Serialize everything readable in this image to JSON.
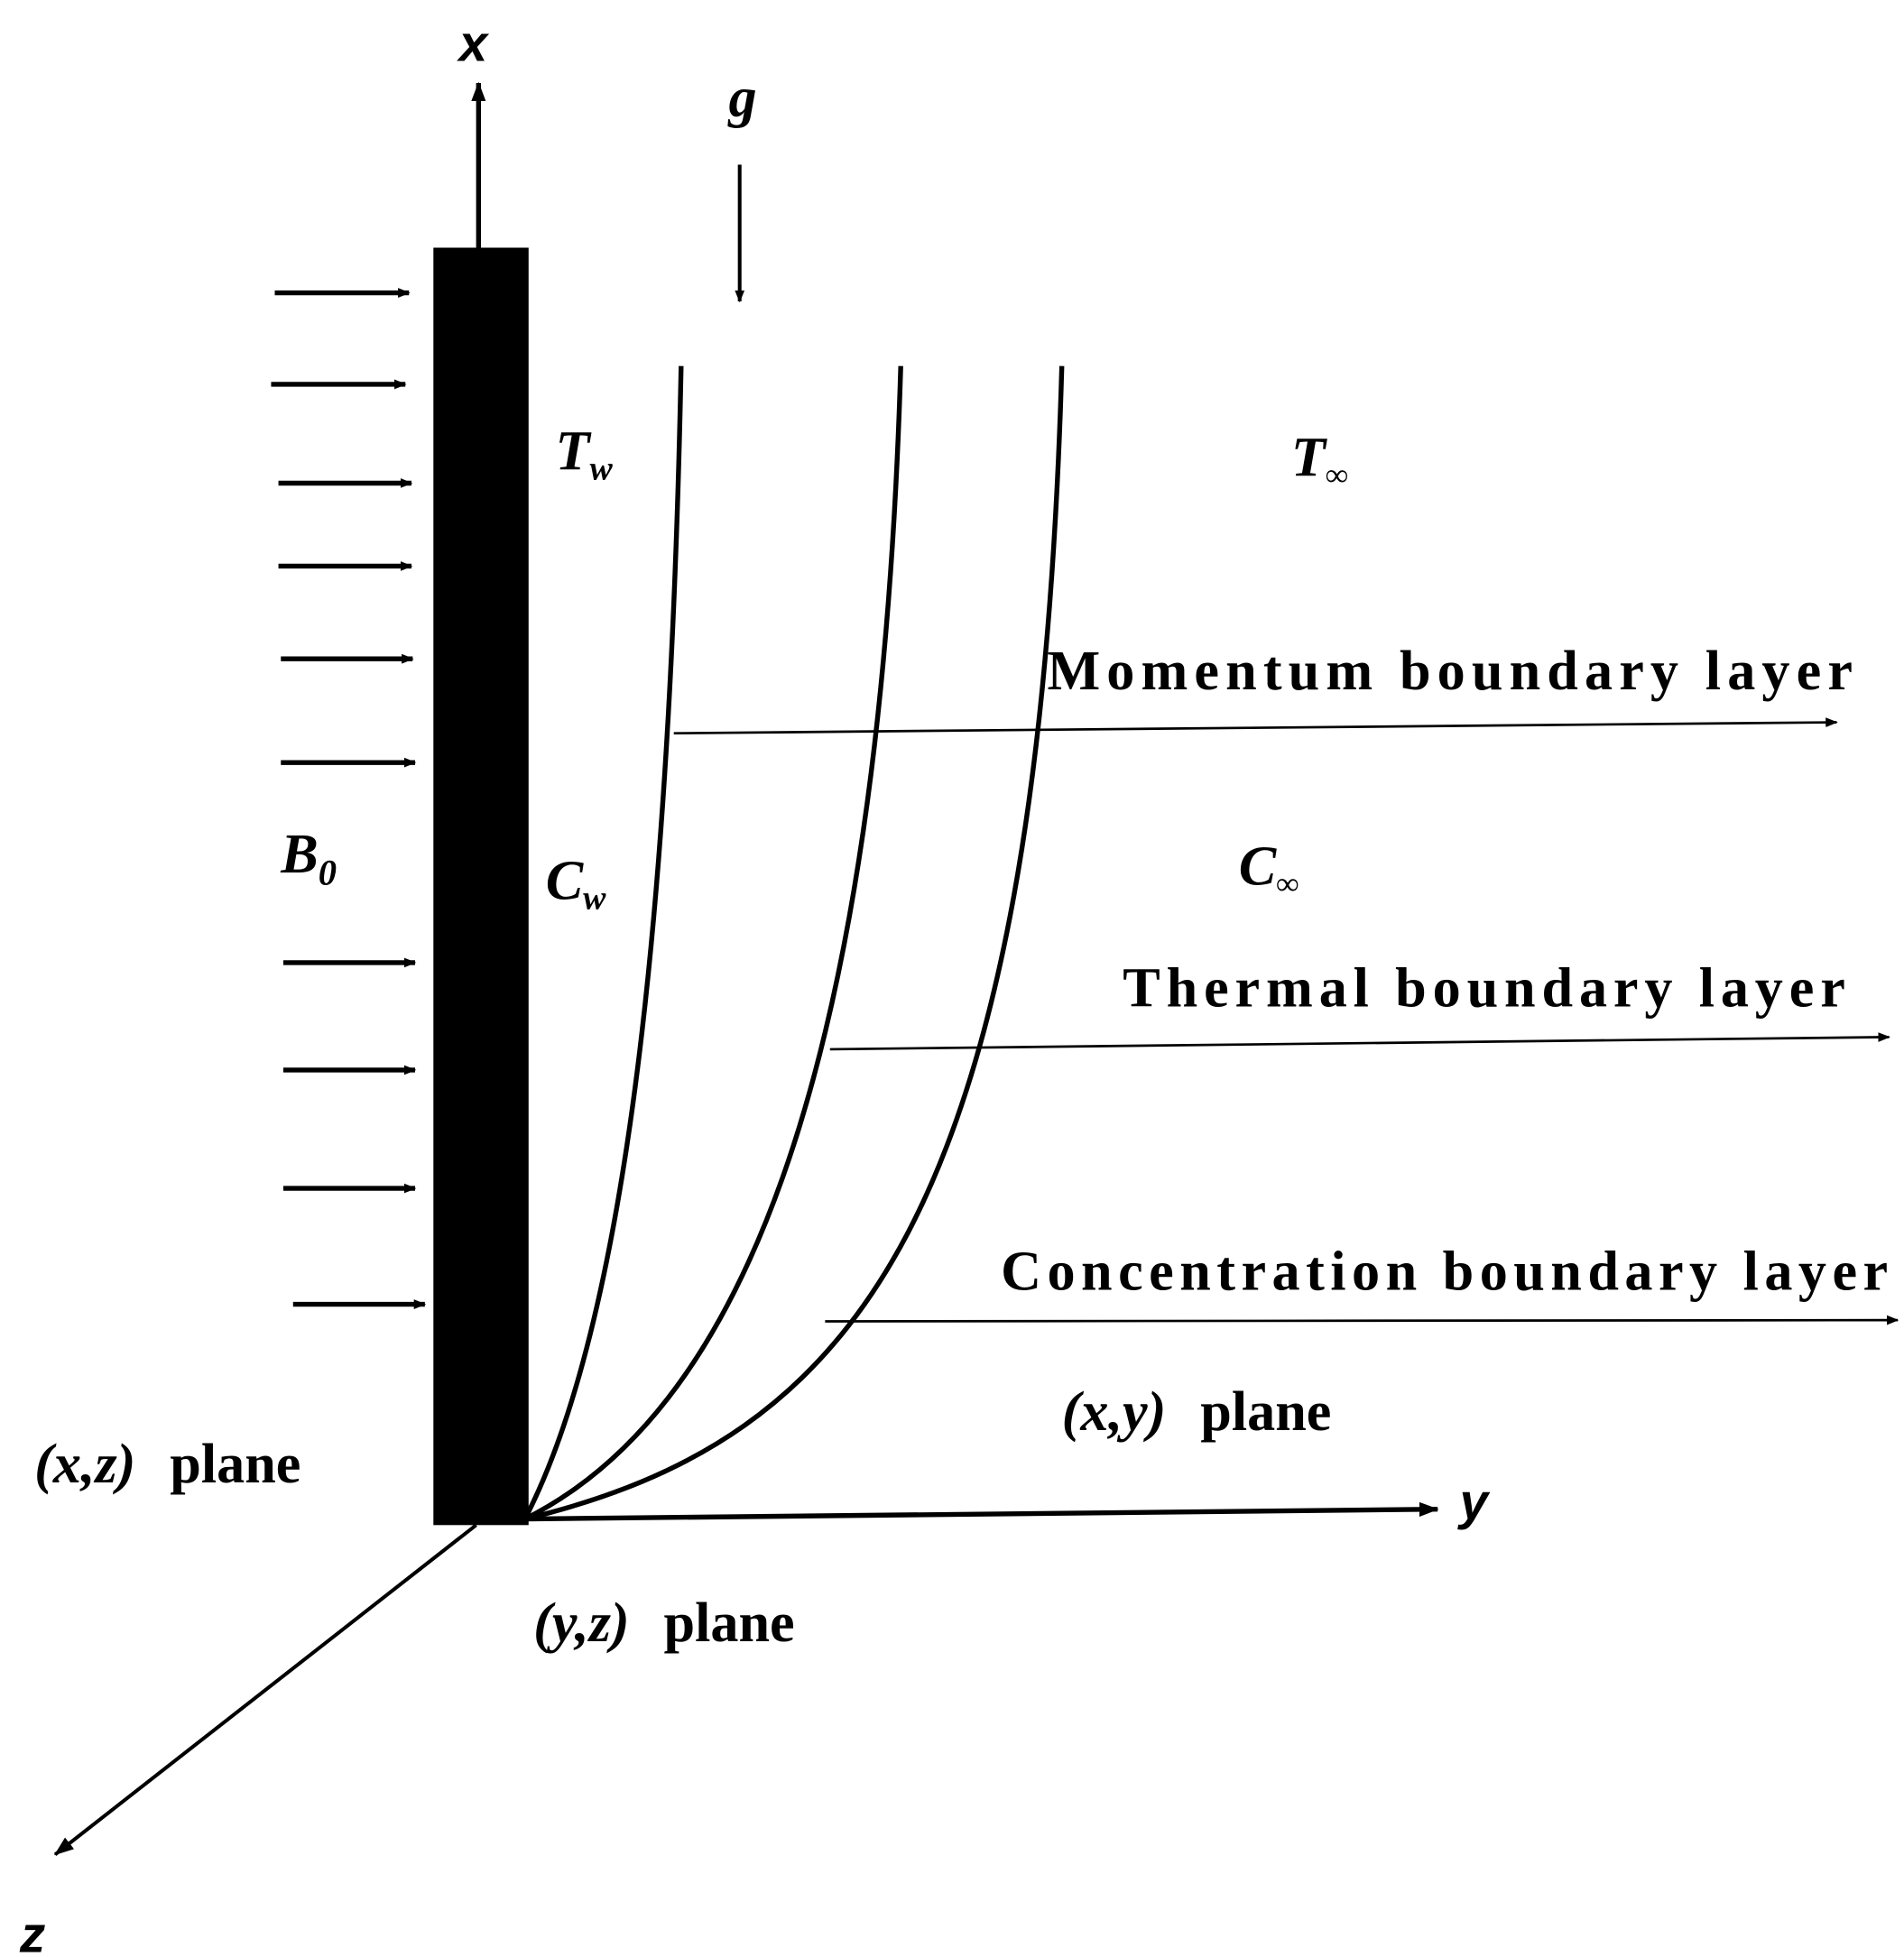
{
  "axes": {
    "x": "x",
    "y": "y",
    "z": "z"
  },
  "gravity": "g",
  "magnetic_field": {
    "symbol": "B",
    "subscript": "0"
  },
  "wall": {
    "temperature": {
      "symbol": "T",
      "subscript": "w"
    },
    "concentration": {
      "symbol": "C",
      "subscript": "w"
    }
  },
  "ambient": {
    "temperature": {
      "symbol": "T",
      "subscript": "∞"
    },
    "concentration": {
      "symbol": "C",
      "subscript": "∞"
    }
  },
  "boundary_layers": [
    {
      "label": "Momentum boundary layer"
    },
    {
      "label": "Thermal boundary layer"
    },
    {
      "label": "Concentration boundary layer"
    }
  ],
  "planes": {
    "xy": {
      "coords": "(x,y)",
      "word": "plane"
    },
    "xz": {
      "coords": "(x,z)",
      "word": "plane"
    },
    "yz": {
      "coords": "(y,z)",
      "word": "plane"
    }
  },
  "colors": {
    "ink": "#000000",
    "background": "#ffffff"
  }
}
